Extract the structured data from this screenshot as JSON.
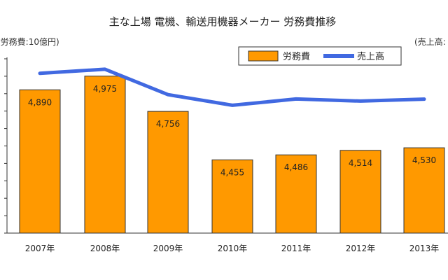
{
  "chart_data": {
    "type": "bar",
    "title": "主な上場 電機、輸送用機器メーカー 労務費推移",
    "left_unit_label": "(労務費:10億円)",
    "right_unit_label": "(売上高:",
    "categories": [
      "2007年",
      "2008年",
      "2009年",
      "2010年",
      "2011年",
      "2012年",
      "2013年"
    ],
    "ylim": [
      4000,
      5100
    ],
    "series": [
      {
        "name": "労務費",
        "kind": "bar",
        "color": "#FF9900",
        "values": [
          4890,
          4975,
          4756,
          4455,
          4486,
          4514,
          4530
        ],
        "labels": [
          "4,890",
          "4,975",
          "4,756",
          "4,455",
          "4,486",
          "4,514",
          "4,530"
        ]
      },
      {
        "name": "売上高",
        "kind": "line",
        "color": "#4169E1",
        "values": [
          4992,
          5018,
          4860,
          4794,
          4833,
          4820,
          4832
        ]
      }
    ],
    "legend_position": "top-right",
    "grid": false
  }
}
